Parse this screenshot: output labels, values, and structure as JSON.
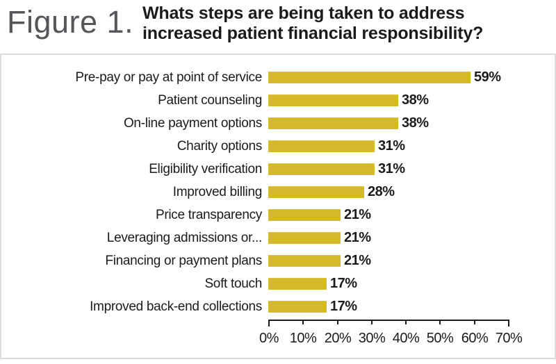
{
  "header": {
    "figure_label": "Figure 1.",
    "title": "Whats steps are being taken to address increased patient financial responsibility?"
  },
  "chart_data": {
    "type": "bar",
    "orientation": "horizontal",
    "title": "Whats steps are being taken to address increased patient financial responsibility?",
    "categories": [
      "Pre-pay or pay at point of service",
      "Patient counseling",
      "On-line payment options",
      "Charity options",
      "Eligibility verification",
      "Improved billing",
      "Price transparency",
      "Leveraging admissions or...",
      "Financing or payment plans",
      "Soft touch",
      "Improved back-end collections"
    ],
    "values": [
      59,
      38,
      38,
      31,
      31,
      28,
      21,
      21,
      21,
      17,
      17
    ],
    "value_suffix": "%",
    "xlabel": "",
    "ylabel": "",
    "axis": {
      "min": 0,
      "max": 70,
      "tick_step": 10,
      "tick_labels": [
        "0%",
        "10%",
        "20%",
        "30%",
        "40%",
        "50%",
        "60%",
        "70%"
      ]
    },
    "grid": false,
    "legend": false,
    "bar_color": "#d4ba29",
    "text_color": "#1c1a1b"
  }
}
